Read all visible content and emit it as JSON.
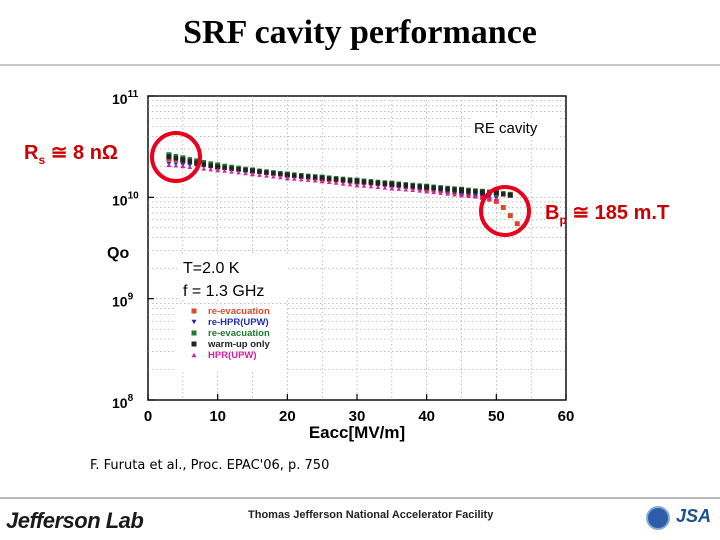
{
  "slide": {
    "title": "SRF cavity performance",
    "citation": "F. Furuta et al., Proc. EPAC'06, p. 750",
    "footer_logo": "Jefferson Lab",
    "footer_lab_name": "Thomas Jefferson National Accelerator Facility",
    "footer_jsa": "JSA"
  },
  "annotations": {
    "rs_symbol": "R",
    "rs_sub": "s",
    "rs_value": " ≅ 8 nΩ",
    "bp_symbol": "B",
    "bp_sub": "p",
    "bp_value": " ≅ 185 m.T",
    "circle_color": "#e8001c",
    "glow_color": "#f7e27a"
  },
  "chart_data": {
    "type": "scatter",
    "xlabel": "Eacc[MV/m]",
    "ylabel": "Qo",
    "xlim": [
      0,
      60
    ],
    "ylim_log10": [
      8,
      11
    ],
    "x_ticks": [
      "0",
      "10",
      "20",
      "30",
      "40",
      "50",
      "60"
    ],
    "y_ticks": [
      {
        "base": "10",
        "exp": "8"
      },
      {
        "base": "10",
        "exp": "9"
      },
      {
        "base": "10",
        "exp": "10"
      },
      {
        "base": "10",
        "exp": "11"
      }
    ],
    "grid": true,
    "plot_label": "RE cavity",
    "conditions": [
      "T=2.0 K",
      "f = 1.3 GHz"
    ],
    "series": [
      {
        "name": "re-evacuation",
        "color": "#d84a2a",
        "marker": "square",
        "x": [
          3,
          5,
          7,
          10,
          15,
          20,
          25,
          30,
          35,
          40,
          45,
          48,
          50,
          51,
          52,
          53
        ],
        "log10_y": [
          10.38,
          10.36,
          10.33,
          10.3,
          10.26,
          10.22,
          10.18,
          10.15,
          10.12,
          10.08,
          10.04,
          10.0,
          9.96,
          9.9,
          9.82,
          9.74
        ]
      },
      {
        "name": "re-HPR(UPW)",
        "color": "#1f2fa8",
        "marker": "triangle-down",
        "x": [
          3,
          5,
          7,
          10,
          15,
          20,
          25,
          30,
          35,
          40,
          45,
          48,
          50
        ],
        "log10_y": [
          10.33,
          10.32,
          10.31,
          10.28,
          10.24,
          10.2,
          10.17,
          10.13,
          10.1,
          10.07,
          10.03,
          10.01,
          9.99
        ]
      },
      {
        "name": "re-evacuation",
        "color": "#1e7a2e",
        "marker": "square",
        "x": [
          3,
          5,
          7,
          10,
          15,
          20,
          25,
          30,
          35,
          40,
          45,
          48,
          50,
          52
        ],
        "log10_y": [
          10.42,
          10.39,
          10.36,
          10.32,
          10.27,
          10.23,
          10.2,
          10.17,
          10.14,
          10.11,
          10.08,
          10.06,
          10.05,
          10.03
        ]
      },
      {
        "name": "warm-up only",
        "color": "#222222",
        "marker": "square",
        "x": [
          3,
          5,
          7,
          10,
          15,
          20,
          25,
          30,
          35,
          40,
          45,
          48,
          50,
          52
        ],
        "log10_y": [
          10.4,
          10.37,
          10.34,
          10.3,
          10.26,
          10.22,
          10.19,
          10.16,
          10.13,
          10.1,
          10.07,
          10.05,
          10.04,
          10.02
        ]
      },
      {
        "name": "HPR(UPW)",
        "color": "#d81fa0",
        "marker": "triangle-up",
        "x": [
          3,
          5,
          7,
          10,
          15,
          20,
          25,
          30,
          35,
          40,
          45,
          48,
          50
        ],
        "log10_y": [
          10.32,
          10.31,
          10.29,
          10.27,
          10.23,
          10.19,
          10.16,
          10.12,
          10.09,
          10.06,
          10.02,
          10.0,
          9.98
        ]
      }
    ]
  }
}
